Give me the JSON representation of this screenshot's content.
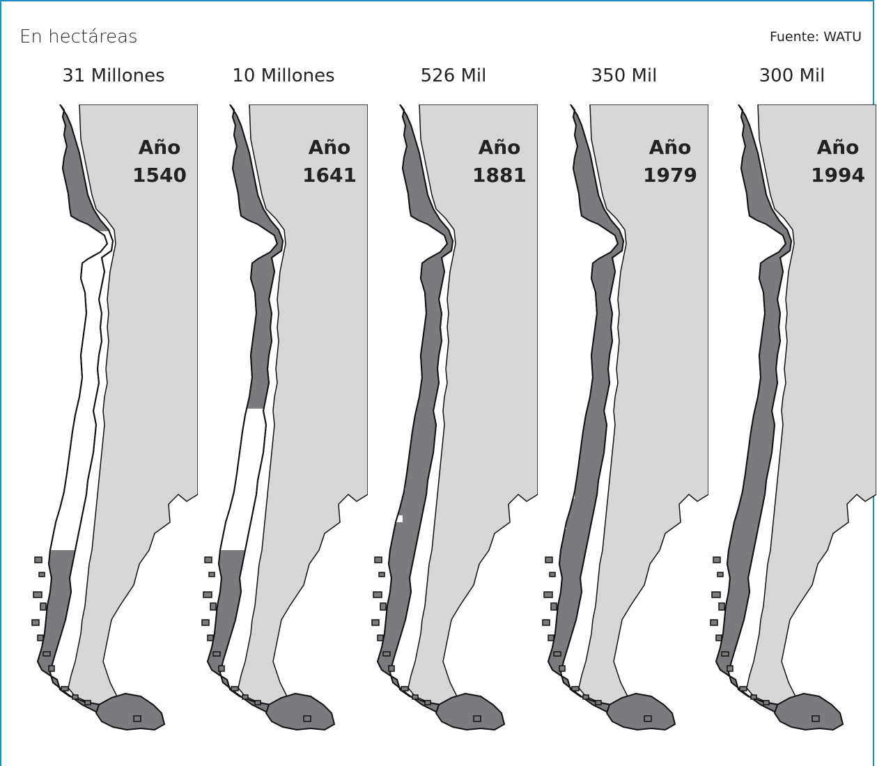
{
  "header": {
    "subtitle": "En hectáreas",
    "source": "Fuente: WATU"
  },
  "colors": {
    "forest": "#7a7b7e",
    "lost": "#ffffff",
    "neighbor": "#d6d7d9",
    "outline": "#111111",
    "frame": "#1a8fc8"
  },
  "maps": [
    {
      "amount": "31 Millones",
      "year_word": "Año",
      "year": "1540",
      "forest_cover_top_fraction": 0.2
    },
    {
      "amount": "10 Millones",
      "year_word": "Año",
      "year": "1641",
      "forest_cover_top_fraction": 0.48
    },
    {
      "amount": "526 Mil",
      "year_word": "Año",
      "year": "1881",
      "forest_cover_top_fraction": 1.0
    },
    {
      "amount": "350 Mil",
      "year_word": "Año",
      "year": "1979",
      "forest_cover_top_fraction": 1.0
    },
    {
      "amount": "300 Mil",
      "year_word": "Año",
      "year": "1994",
      "forest_cover_top_fraction": 1.0
    }
  ]
}
